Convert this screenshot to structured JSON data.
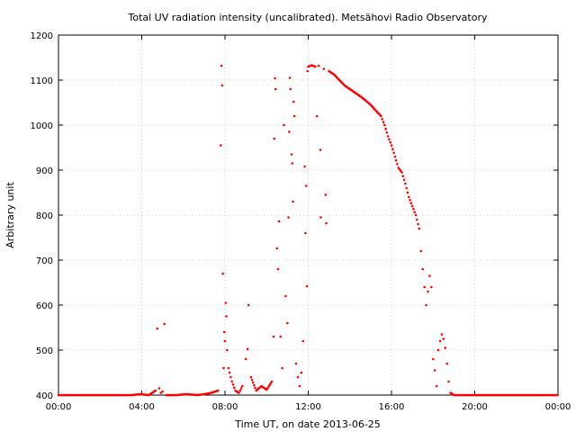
{
  "chart_data": {
    "type": "scatter",
    "title": "Total UV radiation intensity (uncalibrated). Metsähovi Radio Observatory",
    "xlabel": "Time UT, on date 2013-06-25",
    "ylabel": "Arbitrary unit",
    "xlim": [
      "00:00",
      "24:00"
    ],
    "ylim": [
      400,
      1200
    ],
    "x_ticks": [
      "00:00",
      "04:00",
      "08:00",
      "12:00",
      "16:00",
      "20:00",
      "00:00"
    ],
    "y_ticks": [
      "400",
      "500",
      "600",
      "700",
      "800",
      "900",
      "1000",
      "1100",
      "1200"
    ],
    "grid": true,
    "marker_color": "#ff0000",
    "series": [
      {
        "points": [
          [
            "00:00",
            400
          ],
          [
            "00:30",
            400
          ],
          [
            "01:00",
            400
          ],
          [
            "01:30",
            400
          ],
          [
            "02:00",
            400
          ],
          [
            "02:30",
            400
          ],
          [
            "03:00",
            400
          ],
          [
            "03:30",
            400
          ],
          [
            "03:55",
            402
          ],
          [
            "04:20",
            400
          ],
          [
            "04:40",
            410
          ],
          [
            "04:45",
            548
          ],
          [
            "04:50",
            415
          ],
          [
            "04:55",
            405
          ],
          [
            "05:00",
            408
          ],
          [
            "05:05",
            558
          ],
          [
            "05:10",
            400
          ],
          [
            "05:40",
            400
          ],
          [
            "06:10",
            402
          ],
          [
            "06:40",
            400
          ],
          [
            "07:00",
            402
          ],
          [
            "07:20",
            405
          ],
          [
            "07:40",
            410
          ],
          [
            "07:48",
            955
          ],
          [
            "07:50",
            1132
          ],
          [
            "07:52",
            1088
          ],
          [
            "07:54",
            670
          ],
          [
            "07:56",
            460
          ],
          [
            "07:58",
            540
          ],
          [
            "08:00",
            520
          ],
          [
            "08:02",
            605
          ],
          [
            "08:04",
            575
          ],
          [
            "08:06",
            500
          ],
          [
            "08:10",
            460
          ],
          [
            "08:20",
            430
          ],
          [
            "08:30",
            410
          ],
          [
            "08:40",
            405
          ],
          [
            "08:50",
            420
          ],
          [
            "09:00",
            480
          ],
          [
            "09:05",
            502
          ],
          [
            "09:08",
            600
          ],
          [
            "09:15",
            440
          ],
          [
            "09:30",
            410
          ],
          [
            "09:45",
            420
          ],
          [
            "10:00",
            412
          ],
          [
            "10:15",
            430
          ],
          [
            "10:20",
            530
          ],
          [
            "10:22",
            970
          ],
          [
            "10:24",
            1104
          ],
          [
            "10:26",
            1080
          ],
          [
            "10:30",
            726
          ],
          [
            "10:33",
            680
          ],
          [
            "10:36",
            786
          ],
          [
            "10:40",
            530
          ],
          [
            "10:45",
            460
          ],
          [
            "10:50",
            1000
          ],
          [
            "10:55",
            620
          ],
          [
            "11:00",
            560
          ],
          [
            "11:03",
            795
          ],
          [
            "11:05",
            985
          ],
          [
            "11:07",
            1105
          ],
          [
            "11:09",
            1080
          ],
          [
            "11:12",
            935
          ],
          [
            "11:14",
            915
          ],
          [
            "11:16",
            830
          ],
          [
            "11:18",
            1052
          ],
          [
            "11:20",
            1020
          ],
          [
            "11:25",
            470
          ],
          [
            "11:30",
            440
          ],
          [
            "11:35",
            420
          ],
          [
            "11:40",
            450
          ],
          [
            "11:45",
            520
          ],
          [
            "11:50",
            908
          ],
          [
            "11:52",
            760
          ],
          [
            "11:54",
            865
          ],
          [
            "11:56",
            642
          ],
          [
            "11:58",
            1120
          ],
          [
            "12:00",
            1130
          ],
          [
            "12:10",
            1133
          ],
          [
            "12:20",
            1130
          ],
          [
            "12:25",
            1020
          ],
          [
            "12:30",
            1132
          ],
          [
            "12:35",
            945
          ],
          [
            "12:36",
            795
          ],
          [
            "12:45",
            1125
          ],
          [
            "12:50",
            845
          ],
          [
            "12:52",
            782
          ],
          [
            "13:00",
            1120
          ],
          [
            "13:15",
            1112
          ],
          [
            "13:30",
            1100
          ],
          [
            "13:45",
            1088
          ],
          [
            "14:00",
            1080
          ],
          [
            "14:15",
            1072
          ],
          [
            "14:30",
            1064
          ],
          [
            "14:45",
            1055
          ],
          [
            "15:00",
            1045
          ],
          [
            "15:15",
            1032
          ],
          [
            "15:30",
            1020
          ],
          [
            "15:40",
            1000
          ],
          [
            "15:50",
            975
          ],
          [
            "16:00",
            955
          ],
          [
            "16:10",
            930
          ],
          [
            "16:20",
            905
          ],
          [
            "16:30",
            895
          ],
          [
            "16:40",
            870
          ],
          [
            "16:50",
            840
          ],
          [
            "17:00",
            820
          ],
          [
            "17:10",
            800
          ],
          [
            "17:20",
            770
          ],
          [
            "17:25",
            720
          ],
          [
            "17:30",
            680
          ],
          [
            "17:35",
            640
          ],
          [
            "17:40",
            600
          ],
          [
            "17:45",
            630
          ],
          [
            "17:50",
            665
          ],
          [
            "17:55",
            640
          ],
          [
            "18:00",
            480
          ],
          [
            "18:05",
            455
          ],
          [
            "18:10",
            420
          ],
          [
            "18:15",
            500
          ],
          [
            "18:20",
            520
          ],
          [
            "18:25",
            535
          ],
          [
            "18:30",
            525
          ],
          [
            "18:35",
            505
          ],
          [
            "18:40",
            470
          ],
          [
            "18:45",
            430
          ],
          [
            "18:50",
            405
          ],
          [
            "19:00",
            400
          ],
          [
            "19:30",
            400
          ],
          [
            "20:00",
            400
          ],
          [
            "20:30",
            400
          ],
          [
            "21:00",
            400
          ],
          [
            "21:30",
            400
          ],
          [
            "22:00",
            400
          ],
          [
            "22:30",
            400
          ],
          [
            "23:00",
            400
          ],
          [
            "23:30",
            400
          ],
          [
            "23:59",
            400
          ]
        ]
      }
    ]
  }
}
